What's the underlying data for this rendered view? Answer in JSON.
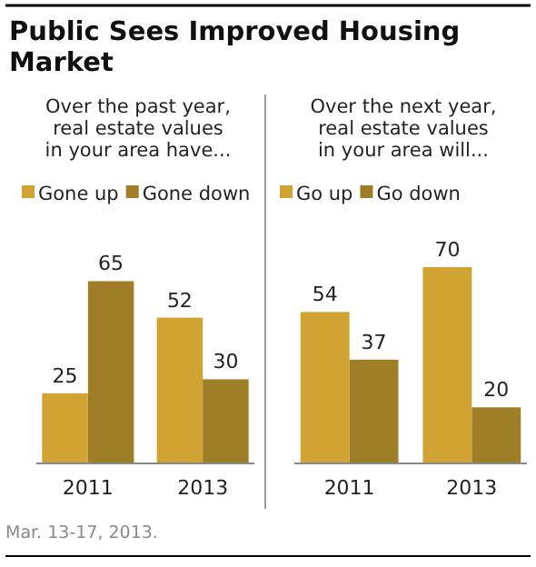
{
  "chart_data": [
    {
      "type": "bar",
      "title": "Public Sees Improved Housing Market",
      "subtitle": "Over the past year,\nreal estate values\nin your area have...",
      "categories": [
        "2011",
        "2013"
      ],
      "series": [
        {
          "name": "Gone up",
          "color": "#d1a332",
          "values": [
            25,
            52
          ]
        },
        {
          "name": "Gone down",
          "color": "#a07e28",
          "values": [
            65,
            30
          ]
        }
      ],
      "data_labels": true,
      "legend": "top",
      "annotations": [
        "Mar. 13-17, 2013."
      ]
    },
    {
      "type": "bar",
      "subtitle": "Over the next year,\nreal estate values\nin your area will...",
      "categories": [
        "2011",
        "2013"
      ],
      "series": [
        {
          "name": "Go up",
          "color": "#d1a332",
          "values": [
            54,
            70
          ]
        },
        {
          "name": "Go down",
          "color": "#a07e28",
          "values": [
            37,
            20
          ]
        }
      ],
      "data_labels": true,
      "legend": "top"
    }
  ]
}
